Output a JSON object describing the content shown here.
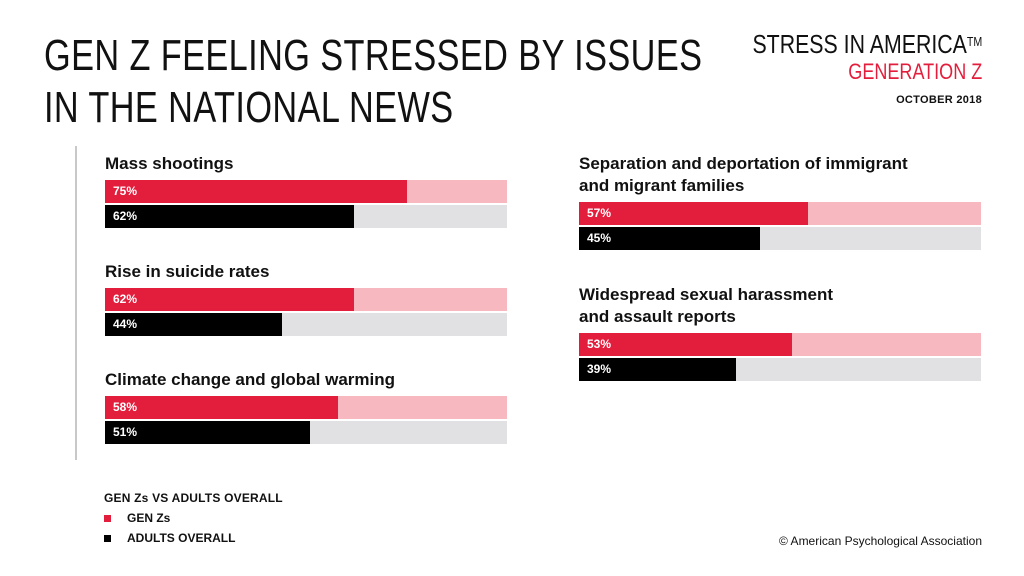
{
  "title": {
    "line1": "GEN Z FEELING STRESSED BY ISSUES",
    "line2": "IN THE NATIONAL NEWS"
  },
  "brand": {
    "main": "STRESS IN AMERICA",
    "tm": "TM",
    "sub": "GENERATION Z",
    "date": "OCTOBER 2018"
  },
  "colors": {
    "gen_z": "#e31e3c",
    "gen_z_track": "#f7b8c0",
    "adults": "#000000",
    "adults_track": "#e1e1e3"
  },
  "chart_data": {
    "type": "bar",
    "orientation": "horizontal",
    "title": "GEN Z FEELING STRESSED BY ISSUES IN THE NATIONAL NEWS",
    "categories": [
      "Mass shootings",
      "Rise in suicide rates",
      "Climate change and global warming",
      "Separation and deportation of immigrant and migrant families",
      "Widespread sexual harassment and assault reports"
    ],
    "category_lines": [
      [
        "Mass shootings"
      ],
      [
        "Rise in suicide rates"
      ],
      [
        "Climate change and global warming"
      ],
      [
        "Separation and deportation of immigrant",
        "and migrant families"
      ],
      [
        "Widespread sexual harassment",
        "and assault reports"
      ]
    ],
    "series": [
      {
        "name": "GEN Zs",
        "values": [
          75,
          62,
          58,
          57,
          53
        ],
        "labels": [
          "75%",
          "62%",
          "58%",
          "57%",
          "53%"
        ]
      },
      {
        "name": "ADULTS OVERALL",
        "values": [
          62,
          44,
          51,
          45,
          39
        ],
        "labels": [
          "62%",
          "44%",
          "51%",
          "45%",
          "39%"
        ]
      }
    ],
    "xlim": [
      0,
      100
    ],
    "legend_title": "GEN Zs VS ADULTS OVERALL",
    "legend_position": "bottom-left"
  },
  "copyright": "© American Psychological Association"
}
